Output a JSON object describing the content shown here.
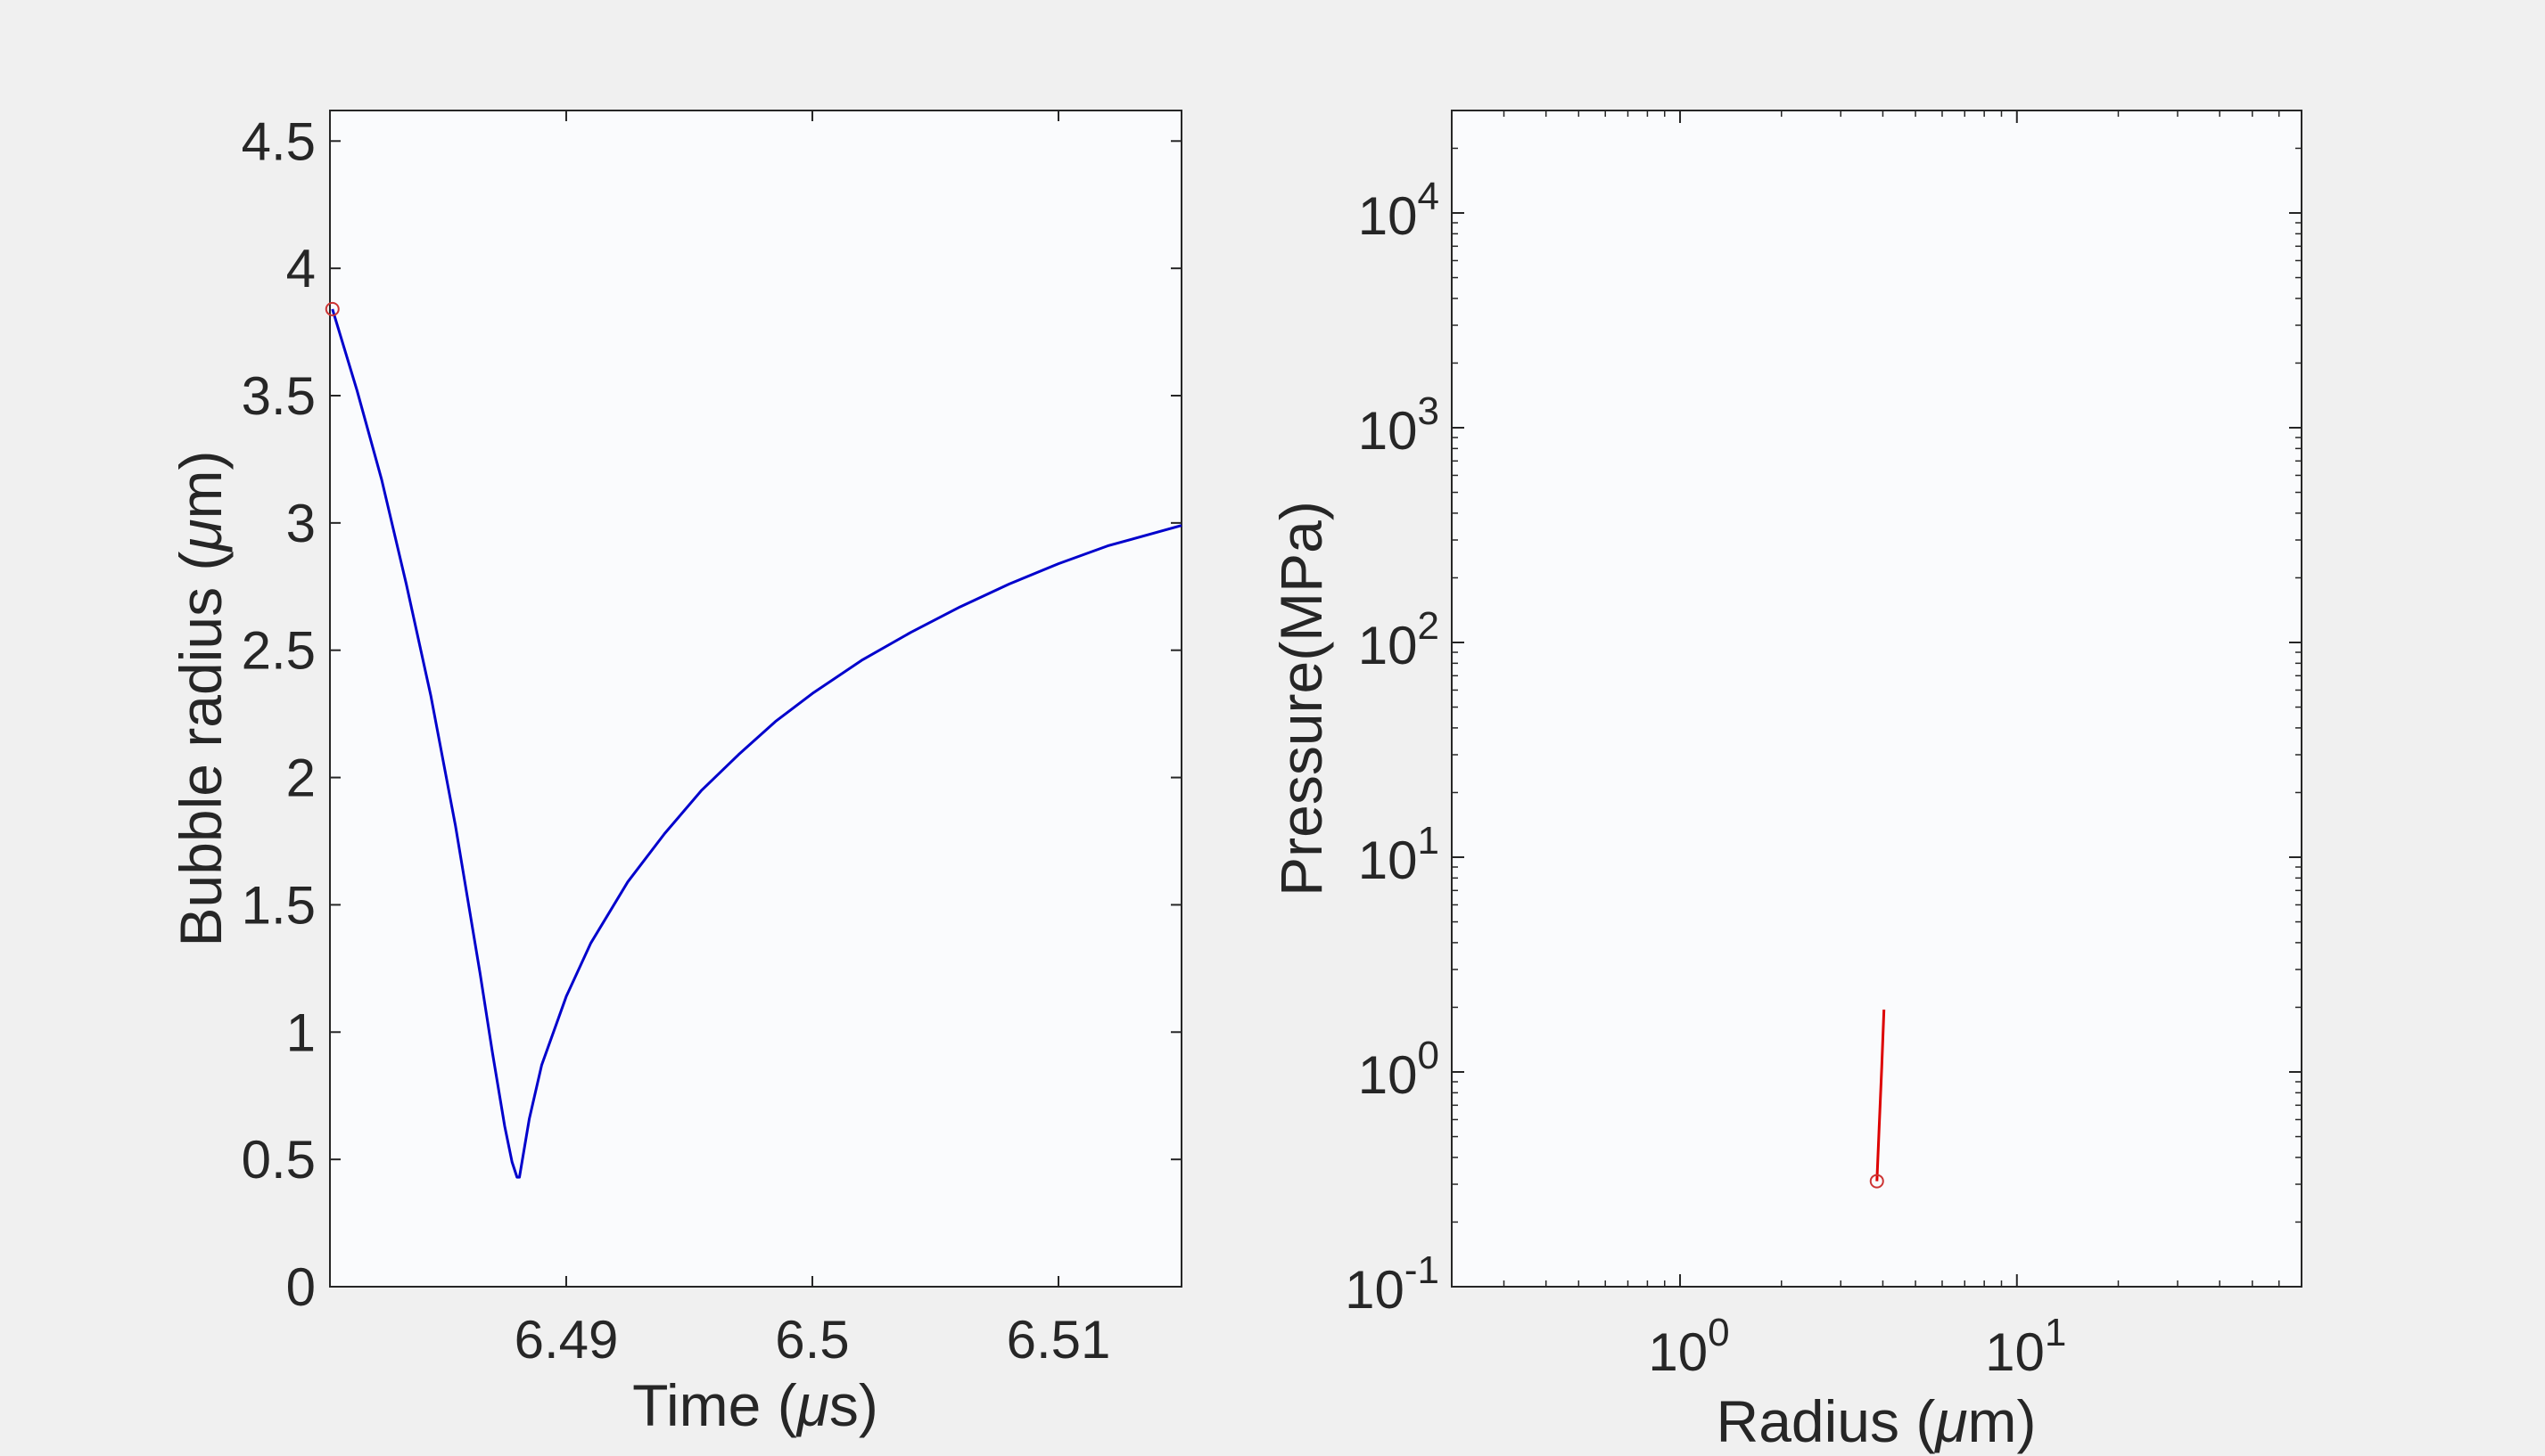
{
  "chart_data": [
    {
      "type": "line",
      "xlabel_main": "Time (",
      "xlabel_mu": "μ",
      "xlabel_unit": "s)",
      "ylabel_main": "Bubble radius (",
      "ylabel_mu": "μ",
      "ylabel_unit": "m)",
      "xlim": [
        6.4804,
        6.515
      ],
      "ylim": [
        0,
        4.62
      ],
      "xticks": [
        6.49,
        6.5,
        6.51
      ],
      "xtick_labels": [
        "6.49",
        "6.5",
        "6.51"
      ],
      "yticks": [
        0,
        0.5,
        1,
        1.5,
        2,
        2.5,
        3,
        3.5,
        4,
        4.5
      ],
      "ytick_labels": [
        "0",
        "0.5",
        "1",
        "1.5",
        "2",
        "2.5",
        "3",
        "3.5",
        "4",
        "4.5"
      ],
      "grid": false,
      "series": [
        {
          "color": "#0000cc",
          "x": [
            6.4805,
            6.4815,
            6.4825,
            6.4835,
            6.4845,
            6.4855,
            6.4865,
            6.487,
            6.4875,
            6.4878,
            6.488,
            6.4881,
            6.4885,
            6.489,
            6.49,
            6.491,
            6.4925,
            6.494,
            6.4955,
            6.497,
            6.4985,
            6.5,
            6.502,
            6.504,
            6.506,
            6.508,
            6.51,
            6.512,
            6.515
          ],
          "y": [
            3.84,
            3.52,
            3.17,
            2.76,
            2.32,
            1.81,
            1.23,
            0.92,
            0.63,
            0.49,
            0.43,
            0.43,
            0.66,
            0.87,
            1.14,
            1.35,
            1.59,
            1.78,
            1.95,
            2.09,
            2.22,
            2.33,
            2.46,
            2.57,
            2.67,
            2.76,
            2.84,
            2.91,
            2.99
          ]
        }
      ],
      "marker": {
        "x": 6.4805,
        "y": 3.84,
        "color": "#cc3333",
        "shape": "circle-open"
      }
    },
    {
      "type": "line",
      "xscale": "log",
      "yscale": "log",
      "xlabel_main": "Radius (",
      "xlabel_mu": "μ",
      "xlabel_unit": "m)",
      "ylabel": "Pressure(MPa)",
      "xlim": [
        0.21,
        70
      ],
      "ylim": [
        0.1,
        30000
      ],
      "xticks": [
        1,
        10
      ],
      "xtick_bases": [
        "10",
        "10"
      ],
      "xtick_exps": [
        "0",
        "1"
      ],
      "yticks": [
        0.1,
        1,
        10,
        100,
        1000,
        10000
      ],
      "ytick_bases": [
        "10",
        "10",
        "10",
        "10",
        "10",
        "10"
      ],
      "ytick_exps": [
        "-1",
        "0",
        "1",
        "2",
        "3",
        "4"
      ],
      "grid": false,
      "series": [
        {
          "color": "#dd0000",
          "x": [
            3.84,
            3.9,
            3.97,
            4.03
          ],
          "y": [
            0.31,
            0.55,
            1.05,
            1.95
          ]
        }
      ],
      "marker": {
        "x": 3.84,
        "y": 0.31,
        "color": "#cc3333",
        "shape": "circle-open"
      }
    }
  ]
}
